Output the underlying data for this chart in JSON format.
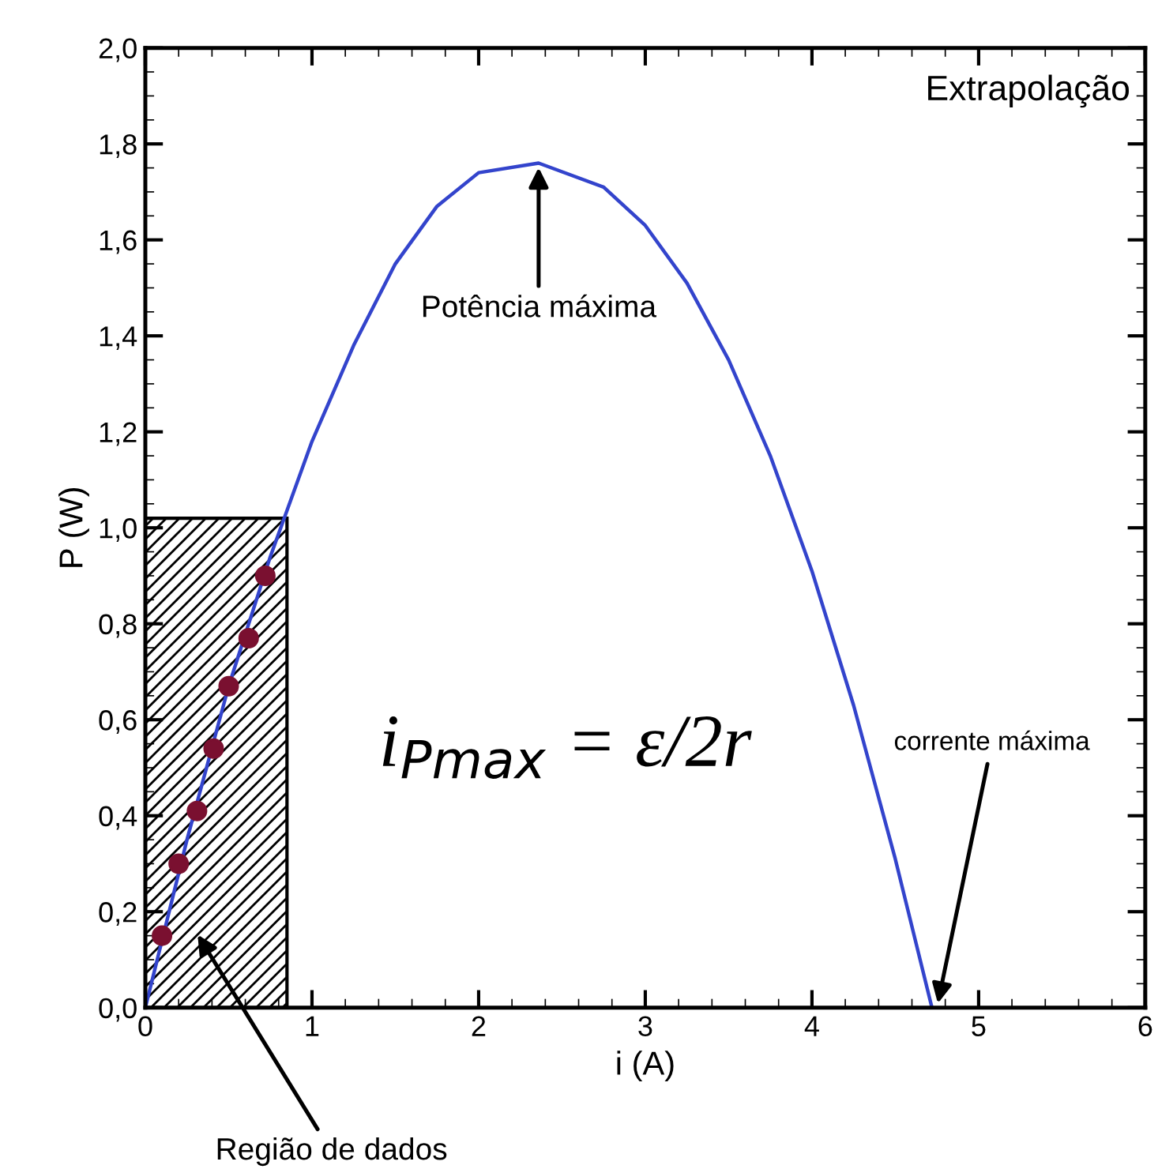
{
  "chart_data": {
    "type": "line",
    "xlabel": "i (A)",
    "ylabel": "P (W)",
    "xlim": [
      0,
      6
    ],
    "xticks": [
      0,
      1,
      2,
      3,
      4,
      5,
      6
    ],
    "ylim": [
      0,
      2.0
    ],
    "yticks": [
      {
        "value": 0,
        "label": "0,0"
      },
      {
        "value": 0.2,
        "label": "0,2"
      },
      {
        "value": 0.4,
        "label": "0,4"
      },
      {
        "value": 0.6,
        "label": "0,6"
      },
      {
        "value": 0.8,
        "label": "0,8"
      },
      {
        "value": 1.0,
        "label": "1,0"
      },
      {
        "value": 1.2,
        "label": "1,2"
      },
      {
        "value": 1.4,
        "label": "1,4"
      },
      {
        "value": 1.6,
        "label": "1,6"
      },
      {
        "value": 1.8,
        "label": "1,8"
      },
      {
        "value": 2.0,
        "label": "2,0"
      }
    ],
    "grid": false,
    "legend": false,
    "series": [
      {
        "type": "histogram",
        "color": "#000000",
        "bins": [
          0,
          0.85
        ],
        "values": [
          1.02
        ]
      },
      {
        "color": "#3344cc",
        "marker": "none",
        "line_style": "solid",
        "x": [
          0,
          0.25,
          0.5,
          0.75,
          1.0,
          1.25,
          1.5,
          1.75,
          2.0,
          2.36,
          2.75,
          3.0,
          3.25,
          3.5,
          3.75,
          4.0,
          4.25,
          4.5,
          4.72
        ],
        "values": [
          0,
          0.35,
          0.67,
          0.94,
          1.18,
          1.38,
          1.55,
          1.67,
          1.74,
          1.76,
          1.71,
          1.63,
          1.51,
          1.35,
          1.15,
          0.91,
          0.63,
          0.31,
          0
        ]
      },
      {
        "type": "scatter",
        "color": "#7a1030",
        "marker": "circle",
        "x": [
          0.1,
          0.2,
          0.31,
          0.41,
          0.5,
          0.62,
          0.72
        ],
        "values": [
          0.15,
          0.3,
          0.41,
          0.54,
          0.67,
          0.77,
          0.9
        ]
      }
    ],
    "annotations": [
      "Extrapolação",
      {
        "text": "Potência máxima",
        "x": 2.36,
        "y": 1.76
      },
      {
        "text": "corrente máxima",
        "x": 4.75,
        "y": 0
      },
      "Região de dados",
      "i$_{Pmax}$ = ε/2r"
    ]
  }
}
